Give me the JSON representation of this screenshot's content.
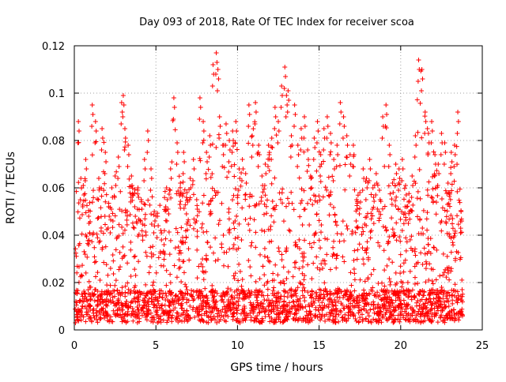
{
  "chart_data": {
    "type": "scatter",
    "title": "Day 093 of 2018, Rate Of TEC Index for receiver scoa",
    "xlabel": "GPS time / hours",
    "ylabel": "ROTI / TECUs",
    "xlim": [
      0,
      25
    ],
    "ylim": [
      0,
      0.12
    ],
    "x_ticks": [
      "0",
      "5",
      "10",
      "15",
      "20",
      "25"
    ],
    "y_ticks": [
      "0",
      "0.02",
      "0.04",
      "0.06",
      "0.08",
      "0.1",
      "0.12"
    ],
    "grid": true,
    "marker": "+",
    "colors": {
      "points": "#ff0000",
      "grid": "#a0a0a0",
      "axis": "#000000"
    },
    "series": [
      {
        "x": [
          0.1,
          0.25,
          0.4,
          0.55,
          0.7,
          0.9,
          1.1,
          1.3,
          1.5,
          1.7,
          1.9,
          2.1,
          2.3,
          2.5,
          2.7,
          2.9,
          3.0,
          3.1,
          3.3,
          3.5,
          3.7,
          3.9,
          4.1,
          4.3,
          4.5,
          4.7,
          4.9,
          5.1,
          5.3,
          5.5,
          5.7,
          5.9,
          6.1,
          6.3,
          6.5,
          6.7,
          6.9,
          7.1,
          7.3,
          7.5,
          7.7,
          7.9,
          8.1,
          8.3,
          8.5,
          8.7,
          8.8,
          8.9,
          9.1,
          9.3,
          9.5,
          9.7,
          9.9,
          10.1,
          10.3,
          10.5,
          10.7,
          10.9,
          11.1,
          11.3,
          11.5,
          11.7,
          11.9,
          12.1,
          12.3,
          12.5,
          12.7,
          12.9,
          13.0,
          13.1,
          13.3,
          13.5,
          13.7,
          13.9,
          14.1,
          14.3,
          14.5,
          14.7,
          14.9,
          15.1,
          15.3,
          15.5,
          15.7,
          15.9,
          16.1,
          16.3,
          16.5,
          16.7,
          16.9,
          17.1,
          17.3,
          17.5,
          17.7,
          17.9,
          18.1,
          18.3,
          18.5,
          18.7,
          18.9,
          19.1,
          19.3,
          19.5,
          19.7,
          19.9,
          20.1,
          20.3,
          20.5,
          20.7,
          20.9,
          21.1,
          21.3,
          21.5,
          21.7,
          21.9,
          22.1,
          22.3,
          22.5,
          22.7,
          22.9,
          23.1,
          23.3,
          23.5,
          23.7
        ],
        "y": [
          0.012,
          0.088,
          0.064,
          0.061,
          0.072,
          0.045,
          0.095,
          0.088,
          0.064,
          0.085,
          0.075,
          0.052,
          0.06,
          0.065,
          0.073,
          0.096,
          0.099,
          0.085,
          0.078,
          0.065,
          0.052,
          0.06,
          0.055,
          0.072,
          0.084,
          0.068,
          0.05,
          0.048,
          0.042,
          0.036,
          0.055,
          0.068,
          0.098,
          0.079,
          0.062,
          0.075,
          0.058,
          0.064,
          0.072,
          0.055,
          0.098,
          0.088,
          0.075,
          0.082,
          0.112,
          0.117,
          0.11,
          0.09,
          0.078,
          0.087,
          0.08,
          0.084,
          0.088,
          0.068,
          0.072,
          0.066,
          0.095,
          0.082,
          0.096,
          0.078,
          0.065,
          0.07,
          0.078,
          0.081,
          0.094,
          0.088,
          0.103,
          0.111,
          0.099,
          0.101,
          0.082,
          0.095,
          0.078,
          0.085,
          0.09,
          0.076,
          0.064,
          0.081,
          0.088,
          0.074,
          0.085,
          0.09,
          0.083,
          0.072,
          0.078,
          0.096,
          0.09,
          0.082,
          0.074,
          0.078,
          0.055,
          0.058,
          0.068,
          0.064,
          0.072,
          0.06,
          0.066,
          0.059,
          0.09,
          0.095,
          0.078,
          0.062,
          0.07,
          0.068,
          0.072,
          0.061,
          0.054,
          0.065,
          0.082,
          0.114,
          0.11,
          0.092,
          0.083,
          0.088,
          0.074,
          0.07,
          0.083,
          0.079,
          0.062,
          0.075,
          0.078,
          0.092,
          0.05
        ],
        "baseline_range": [
          0.003,
          0.06
        ]
      }
    ]
  }
}
